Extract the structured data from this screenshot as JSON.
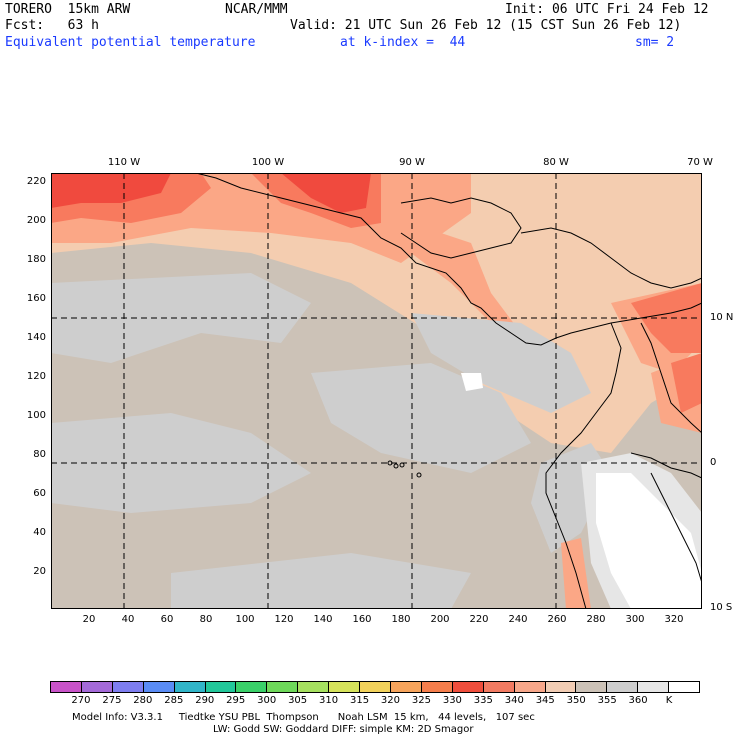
{
  "header": {
    "model": "TORERO  15km ARW",
    "org": "NCAR/MMM",
    "init": "Init: 06 UTC Fri 24 Feb 12",
    "fcst": "Fcst:   63 h",
    "valid": "Valid: 21 UTC Sun 26 Feb 12 (15 CST Sun 26 Feb 12)",
    "field": "Equivalent potential temperature",
    "level": "at k-index =  44",
    "smooth": "sm= 2"
  },
  "map": {
    "lon_labels": [
      "110 W",
      "100 W",
      "90 W",
      "80 W",
      "70 W"
    ],
    "lat_labels": [
      "10 N",
      "0",
      "10 S"
    ],
    "y_ticks": [
      "220",
      "200",
      "180",
      "160",
      "140",
      "120",
      "100",
      "80",
      "60",
      "40",
      "20"
    ],
    "x_ticks": [
      "20",
      "40",
      "60",
      "80",
      "100",
      "120",
      "140",
      "160",
      "180",
      "200",
      "220",
      "240",
      "260",
      "280",
      "300",
      "320"
    ],
    "background_color": "#ccc2b7",
    "colors": {
      "warm_pink": "#f4cdb0",
      "salmon": "#fba786",
      "orange_red": "#f87a5e",
      "red": "#f04a3e",
      "gray": "#cecece",
      "light_gray": "#e6e6e6",
      "white": "#ffffff",
      "land_outline": "#000000",
      "grid_line": "#000000"
    }
  },
  "colorbar": {
    "labels": [
      "270",
      "275",
      "280",
      "285",
      "290",
      "295",
      "300",
      "305",
      "310",
      "315",
      "320",
      "325",
      "330",
      "335",
      "340",
      "345",
      "350",
      "355",
      "360",
      "K"
    ],
    "colors": [
      "#c853c8",
      "#a46ad8",
      "#7e7ef0",
      "#5a8cf5",
      "#31b5c8",
      "#22c79a",
      "#3ad069",
      "#6ed85a",
      "#a6e060",
      "#d6e35c",
      "#f2d25c",
      "#f6a45c",
      "#f57e4c",
      "#ef4e3c",
      "#f27b62",
      "#f7a78a",
      "#f2cdb4",
      "#ccc2b7",
      "#cecece",
      "#e6e6e6",
      "#ffffff"
    ]
  },
  "footer": {
    "line1": "Model Info: V3.3.1     Tiedtke YSU PBL  Thompson      Noah LSM  15 km,   44 levels,   107 sec",
    "line2": "LW: Godd SW: Goddard DIFF: simple KM: 2D Smagor"
  }
}
